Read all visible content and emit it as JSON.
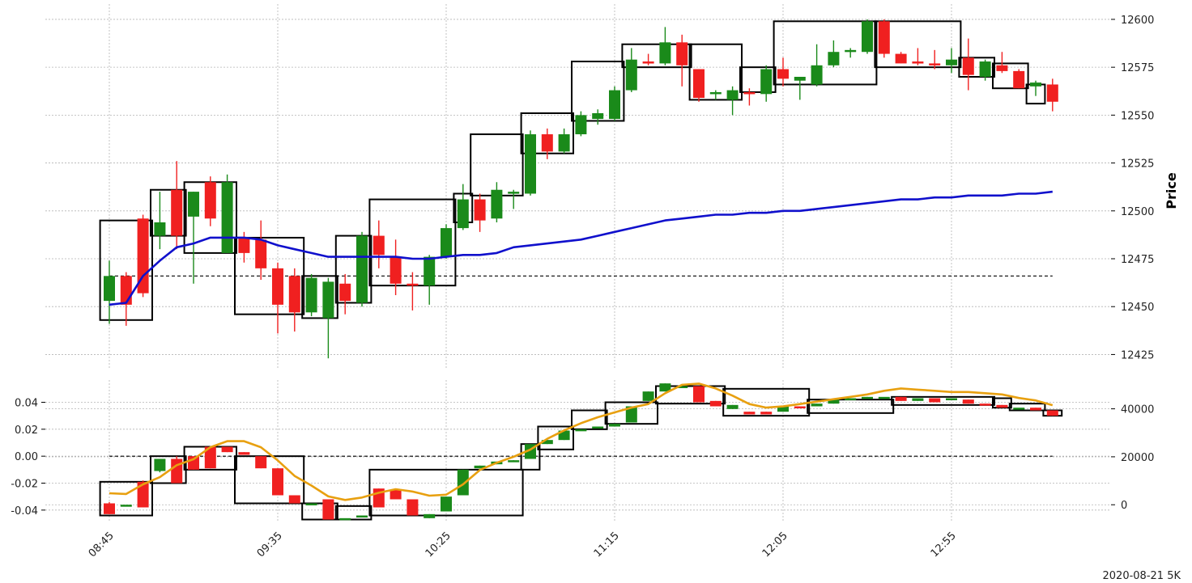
{
  "chart_data": {
    "type": "candlestick",
    "caption": "2020-08-21 5K",
    "colors": {
      "up": "#1a8a1a",
      "down": "#f02020",
      "ma_price": "#1010cc",
      "ma_volume": "#e8a010",
      "box": "#000000",
      "grid": "#b4b4b4"
    },
    "x_ticks": [
      "08:45",
      "09:35",
      "10:25",
      "11:15",
      "12:05",
      "12:55"
    ],
    "price": {
      "ylabel": "Price",
      "yticks": [
        12425,
        12450,
        12475,
        12500,
        12525,
        12550,
        12575,
        12600
      ],
      "ylim": [
        12418,
        12608
      ],
      "hline": 12466,
      "candles": [
        [
          12453,
          12466,
          12441,
          12474
        ],
        [
          12466,
          12451,
          12440,
          12468
        ],
        [
          12496,
          12457,
          12455,
          12498
        ],
        [
          12487,
          12494,
          12480,
          12510
        ],
        [
          12511,
          12487,
          12480,
          12526
        ],
        [
          12497,
          12510,
          12462,
          12510
        ],
        [
          12515,
          12496,
          12492,
          12518
        ],
        [
          12478,
          12515,
          12478,
          12519
        ],
        [
          12486,
          12478,
          12473,
          12489
        ],
        [
          12485,
          12470,
          12464,
          12495
        ],
        [
          12470,
          12451,
          12436,
          12473
        ],
        [
          12466,
          12447,
          12437,
          12470
        ],
        [
          12447,
          12465,
          12445,
          12467
        ],
        [
          12444,
          12463,
          12423,
          12465
        ],
        [
          12462,
          12453,
          12446,
          12467
        ],
        [
          12452,
          12487,
          12450,
          12489
        ],
        [
          12487,
          12477,
          12470,
          12495
        ],
        [
          12476,
          12462,
          12456,
          12485
        ],
        [
          12462,
          12461,
          12448,
          12468
        ],
        [
          12461,
          12476,
          12451,
          12477
        ],
        [
          12476,
          12491,
          12475,
          12493
        ],
        [
          12491,
          12506,
          12490,
          12514
        ],
        [
          12506,
          12495,
          12489,
          12509
        ],
        [
          12496,
          12511,
          12494,
          12515
        ],
        [
          12509,
          12510,
          12501,
          12511
        ],
        [
          12509,
          12540,
          12508,
          12542
        ],
        [
          12540,
          12531,
          12527,
          12543
        ],
        [
          12531,
          12540,
          12530,
          12543
        ],
        [
          12540,
          12550,
          12539,
          12552
        ],
        [
          12548,
          12551,
          12545,
          12553
        ],
        [
          12548,
          12563,
          12547,
          12565
        ],
        [
          12563,
          12579,
          12562,
          12585
        ],
        [
          12578,
          12577,
          12576,
          12582
        ],
        [
          12577,
          12588,
          12576,
          12596
        ],
        [
          12588,
          12576,
          12565,
          12592
        ],
        [
          12574,
          12559,
          12557,
          12574
        ],
        [
          12562,
          12562,
          12558,
          12563
        ],
        [
          12558,
          12563,
          12550,
          12565
        ],
        [
          12562,
          12561,
          12555,
          12564
        ],
        [
          12561,
          12574,
          12557,
          12576
        ],
        [
          12574,
          12569,
          12565,
          12580
        ],
        [
          12568,
          12570,
          12558,
          12570
        ],
        [
          12566,
          12576,
          12565,
          12587
        ],
        [
          12576,
          12583,
          12575,
          12589
        ],
        [
          12583,
          12584,
          12580,
          12585
        ],
        [
          12583,
          12599,
          12582,
          12600
        ],
        [
          12599,
          12582,
          12580,
          12600
        ],
        [
          12582,
          12577,
          12577,
          12583
        ],
        [
          12578,
          12577,
          12576,
          12585
        ],
        [
          12577,
          12576,
          12574,
          12584
        ],
        [
          12576,
          12579,
          12572,
          12585
        ],
        [
          12580,
          12571,
          12563,
          12590
        ],
        [
          12570,
          12578,
          12568,
          12579
        ],
        [
          12576,
          12573,
          12572,
          12583
        ],
        [
          12573,
          12564,
          12564,
          12574
        ],
        [
          12565,
          12567,
          12560,
          12568
        ],
        [
          12566,
          12557,
          12552,
          12569
        ]
      ],
      "boxes": [
        [
          0,
          2,
          12443,
          12495
        ],
        [
          3,
          4,
          12487,
          12511
        ],
        [
          5,
          7,
          12478,
          12515
        ],
        [
          8,
          11,
          12446,
          12486
        ],
        [
          12,
          13,
          12444,
          12466
        ],
        [
          14,
          15,
          12452,
          12487
        ],
        [
          16,
          20,
          12461,
          12506
        ],
        [
          21,
          21,
          12494,
          12509
        ],
        [
          22,
          24,
          12508,
          12540
        ],
        [
          25,
          27,
          12530,
          12551
        ],
        [
          28,
          30,
          12547,
          12578
        ],
        [
          31,
          34,
          12575,
          12587
        ],
        [
          35,
          37,
          12558,
          12587
        ],
        [
          38,
          39,
          12562,
          12575
        ],
        [
          40,
          45,
          12566,
          12599
        ],
        [
          46,
          50,
          12575,
          12599
        ],
        [
          51,
          52,
          12570,
          12580
        ],
        [
          53,
          54,
          12564,
          12577
        ],
        [
          55,
          55,
          12556,
          12566
        ]
      ],
      "ma": [
        12451,
        12452,
        12466,
        12474,
        12481,
        12483,
        12486,
        12486,
        12486,
        12485,
        12482,
        12480,
        12478,
        12476,
        12476,
        12476,
        12476,
        12476,
        12475,
        12475,
        12476,
        12477,
        12477,
        12478,
        12481,
        12482,
        12483,
        12484,
        12485,
        12487,
        12489,
        12491,
        12493,
        12495,
        12496,
        12497,
        12498,
        12498,
        12499,
        12499,
        12500,
        12500,
        12501,
        12502,
        12503,
        12504,
        12505,
        12506,
        12506,
        12507,
        12507,
        12508,
        12508,
        12508,
        12509,
        12509,
        12510
      ]
    },
    "oscillator": {
      "yticks": [
        -0.04,
        -0.02,
        0.0,
        0.02,
        0.04
      ],
      "ylim": [
        -0.0485,
        0.0565
      ],
      "hline": 0.0,
      "candles": [
        [
          -0.035,
          -0.043,
          -0.043,
          -0.034
        ],
        [
          -0.036,
          -0.036,
          -0.036,
          -0.036
        ],
        [
          -0.019,
          -0.038,
          -0.038,
          -0.018
        ],
        [
          -0.011,
          -0.002,
          -0.012,
          -0.002
        ],
        [
          -0.002,
          -0.02,
          -0.02,
          0.0
        ],
        [
          0.0,
          -0.01,
          -0.01,
          0.0
        ],
        [
          0.007,
          -0.009,
          -0.009,
          0.007
        ],
        [
          0.007,
          0.003,
          0.003,
          0.007
        ],
        [
          0.003,
          0.001,
          0.001,
          0.003
        ],
        [
          0.0,
          -0.009,
          -0.009,
          0.0
        ],
        [
          -0.009,
          -0.029,
          -0.029,
          -0.009
        ],
        [
          -0.029,
          -0.035,
          -0.035,
          -0.029
        ],
        [
          -0.035,
          -0.035,
          -0.035,
          -0.035
        ],
        [
          -0.032,
          -0.047,
          -0.047,
          -0.032
        ],
        [
          -0.046,
          -0.046,
          -0.046,
          -0.046
        ],
        [
          -0.045,
          -0.044,
          -0.045,
          -0.044
        ],
        [
          -0.024,
          -0.038,
          -0.038,
          -0.024
        ],
        [
          -0.025,
          -0.032,
          -0.032,
          -0.025
        ],
        [
          -0.032,
          -0.044,
          -0.044,
          -0.032
        ],
        [
          -0.046,
          -0.043,
          -0.046,
          -0.043
        ],
        [
          -0.041,
          -0.03,
          -0.041,
          -0.03
        ],
        [
          -0.029,
          -0.01,
          -0.029,
          -0.01
        ],
        [
          -0.009,
          -0.007,
          -0.009,
          -0.007
        ],
        [
          -0.006,
          -0.004,
          -0.006,
          -0.004
        ],
        [
          -0.004,
          -0.003,
          -0.004,
          -0.003
        ],
        [
          -0.002,
          0.009,
          -0.002,
          0.009
        ],
        [
          0.009,
          0.012,
          0.009,
          0.012
        ],
        [
          0.012,
          0.019,
          0.012,
          0.019
        ],
        [
          0.019,
          0.02,
          0.019,
          0.02
        ],
        [
          0.021,
          0.022,
          0.021,
          0.022
        ],
        [
          0.022,
          0.024,
          0.022,
          0.024
        ],
        [
          0.025,
          0.037,
          0.025,
          0.037
        ],
        [
          0.041,
          0.048,
          0.041,
          0.048
        ],
        [
          0.048,
          0.054,
          0.048,
          0.054
        ],
        [
          0.052,
          0.052,
          0.052,
          0.052
        ],
        [
          0.052,
          0.04,
          0.04,
          0.052
        ],
        [
          0.041,
          0.037,
          0.037,
          0.041
        ],
        [
          0.035,
          0.038,
          0.035,
          0.038
        ],
        [
          0.033,
          0.031,
          0.031,
          0.033
        ],
        [
          0.033,
          0.031,
          0.031,
          0.033
        ],
        [
          0.033,
          0.037,
          0.033,
          0.037
        ],
        [
          0.037,
          0.036,
          0.036,
          0.037
        ],
        [
          0.037,
          0.039,
          0.037,
          0.039
        ],
        [
          0.039,
          0.042,
          0.039,
          0.042
        ],
        [
          0.042,
          0.043,
          0.042,
          0.043
        ],
        [
          0.043,
          0.044,
          0.043,
          0.044
        ],
        [
          0.044,
          0.044,
          0.044,
          0.044
        ],
        [
          0.044,
          0.041,
          0.041,
          0.044
        ],
        [
          0.041,
          0.043,
          0.041,
          0.043
        ],
        [
          0.043,
          0.04,
          0.04,
          0.043
        ],
        [
          0.043,
          0.043,
          0.043,
          0.043
        ],
        [
          0.042,
          0.039,
          0.039,
          0.042
        ],
        [
          0.039,
          0.038,
          0.038,
          0.039
        ],
        [
          0.038,
          0.036,
          0.036,
          0.038
        ],
        [
          0.036,
          0.036,
          0.036,
          0.036
        ],
        [
          0.036,
          0.034,
          0.034,
          0.036
        ],
        [
          0.034,
          0.03,
          0.03,
          0.034
        ]
      ],
      "boxes": [
        [
          0,
          2,
          -0.044,
          -0.019
        ],
        [
          3,
          4,
          -0.02,
          -0.0
        ],
        [
          5,
          7,
          -0.01,
          0.007
        ],
        [
          8,
          11,
          -0.035,
          -0.0
        ],
        [
          12,
          13,
          -0.047,
          -0.035
        ],
        [
          14,
          15,
          -0.047,
          -0.037
        ],
        [
          16,
          24,
          -0.044,
          -0.01
        ],
        [
          25,
          25,
          -0.01,
          0.009
        ],
        [
          26,
          27,
          0.005,
          0.022
        ],
        [
          28,
          29,
          0.02,
          0.034
        ],
        [
          30,
          32,
          0.024,
          0.04
        ],
        [
          33,
          36,
          0.039,
          0.052
        ],
        [
          37,
          41,
          0.03,
          0.05
        ],
        [
          42,
          46,
          0.032,
          0.042
        ],
        [
          47,
          52,
          0.038,
          0.044
        ],
        [
          53,
          53,
          0.036,
          0.043
        ],
        [
          54,
          55,
          0.034,
          0.039
        ],
        [
          56,
          56,
          0.03,
          0.034
        ]
      ]
    },
    "volume": {
      "yticks": [
        0,
        20000,
        40000
      ],
      "ylim": [
        -7000,
        52000
      ],
      "ma": [
        4800,
        4500,
        8500,
        11500,
        16500,
        19000,
        24000,
        26500,
        26500,
        24000,
        18500,
        12000,
        8000,
        3500,
        2000,
        3000,
        5000,
        6500,
        5500,
        3800,
        4200,
        8500,
        14500,
        17500,
        20000,
        23000,
        27500,
        31000,
        34000,
        36500,
        38500,
        40500,
        42000,
        46500,
        50000,
        50500,
        48500,
        45500,
        42000,
        40500,
        41000,
        42000,
        43000,
        44000,
        45000,
        46000,
        47500,
        48500,
        48000,
        47500,
        47000,
        47000,
        46500,
        46000,
        44500,
        43500,
        41500
      ]
    }
  }
}
